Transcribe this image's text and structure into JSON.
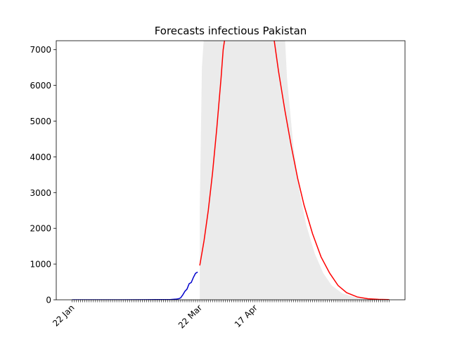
{
  "chart_data": {
    "type": "line",
    "title": "Forecasts infectious Pakistan",
    "xlabel": "",
    "ylabel": "",
    "x_start": "2020-01-22",
    "x_end": "2020-06-19",
    "ylim": [
      0,
      7250
    ],
    "yticks": [
      0,
      1000,
      2000,
      3000,
      4000,
      5000,
      6000,
      7000
    ],
    "xtick_labels": [
      {
        "label": "22 Jan",
        "date": "2020-01-22"
      },
      {
        "label": "22 Mar",
        "date": "2020-03-22"
      },
      {
        "label": "17 Apr",
        "date": "2020-04-17"
      }
    ],
    "grid": false,
    "legend": "none",
    "series": [
      {
        "role": "observed",
        "color": "#0000cc",
        "points": [
          [
            "2020-01-22",
            0
          ],
          [
            "2020-02-01",
            0
          ],
          [
            "2020-02-15",
            0
          ],
          [
            "2020-02-26",
            2
          ],
          [
            "2020-03-01",
            4
          ],
          [
            "2020-03-05",
            5
          ],
          [
            "2020-03-08",
            6
          ],
          [
            "2020-03-10",
            16
          ],
          [
            "2020-03-11",
            19
          ],
          [
            "2020-03-12",
            28
          ],
          [
            "2020-03-13",
            53
          ],
          [
            "2020-03-14",
            136
          ],
          [
            "2020-03-15",
            236
          ],
          [
            "2020-03-16",
            299
          ],
          [
            "2020-03-17",
            450
          ],
          [
            "2020-03-18",
            484
          ],
          [
            "2020-03-19",
            626
          ],
          [
            "2020-03-20",
            740
          ],
          [
            "2020-03-21",
            776
          ]
        ]
      },
      {
        "role": "forecast",
        "color": "#ff0000",
        "points": [
          [
            "2020-03-22",
            960
          ],
          [
            "2020-03-24",
            1650
          ],
          [
            "2020-03-26",
            2500
          ],
          [
            "2020-03-28",
            3550
          ],
          [
            "2020-03-30",
            4800
          ],
          [
            "2020-04-01",
            6200
          ],
          [
            "2020-04-02",
            7000
          ],
          [
            "2020-04-03",
            7400
          ],
          [
            "2020-04-25",
            7400
          ],
          [
            "2020-04-26",
            7250
          ],
          [
            "2020-04-28",
            6400
          ],
          [
            "2020-05-01",
            5300
          ],
          [
            "2020-05-04",
            4300
          ],
          [
            "2020-05-07",
            3400
          ],
          [
            "2020-05-10",
            2650
          ],
          [
            "2020-05-14",
            1850
          ],
          [
            "2020-05-18",
            1200
          ],
          [
            "2020-05-22",
            750
          ],
          [
            "2020-05-26",
            400
          ],
          [
            "2020-05-30",
            200
          ],
          [
            "2020-06-04",
            80
          ],
          [
            "2020-06-09",
            30
          ],
          [
            "2020-06-14",
            12
          ],
          [
            "2020-06-19",
            5
          ]
        ]
      }
    ],
    "band": {
      "color": "#ebebeb",
      "lower": [
        [
          "2020-03-22",
          0
        ],
        [
          "2020-06-19",
          0
        ]
      ],
      "upper": [
        [
          "2020-03-22",
          0
        ],
        [
          "2020-03-22",
          2500
        ],
        [
          "2020-03-23",
          6500
        ],
        [
          "2020-03-24",
          7400
        ],
        [
          "2020-05-01",
          7400
        ],
        [
          "2020-05-02",
          6200
        ],
        [
          "2020-05-05",
          4300
        ],
        [
          "2020-05-08",
          3000
        ],
        [
          "2020-05-11",
          2100
        ],
        [
          "2020-05-15",
          1300
        ],
        [
          "2020-05-19",
          750
        ],
        [
          "2020-05-23",
          400
        ],
        [
          "2020-05-28",
          180
        ],
        [
          "2020-06-03",
          70
        ],
        [
          "2020-06-10",
          20
        ],
        [
          "2020-06-19",
          5
        ]
      ]
    }
  }
}
